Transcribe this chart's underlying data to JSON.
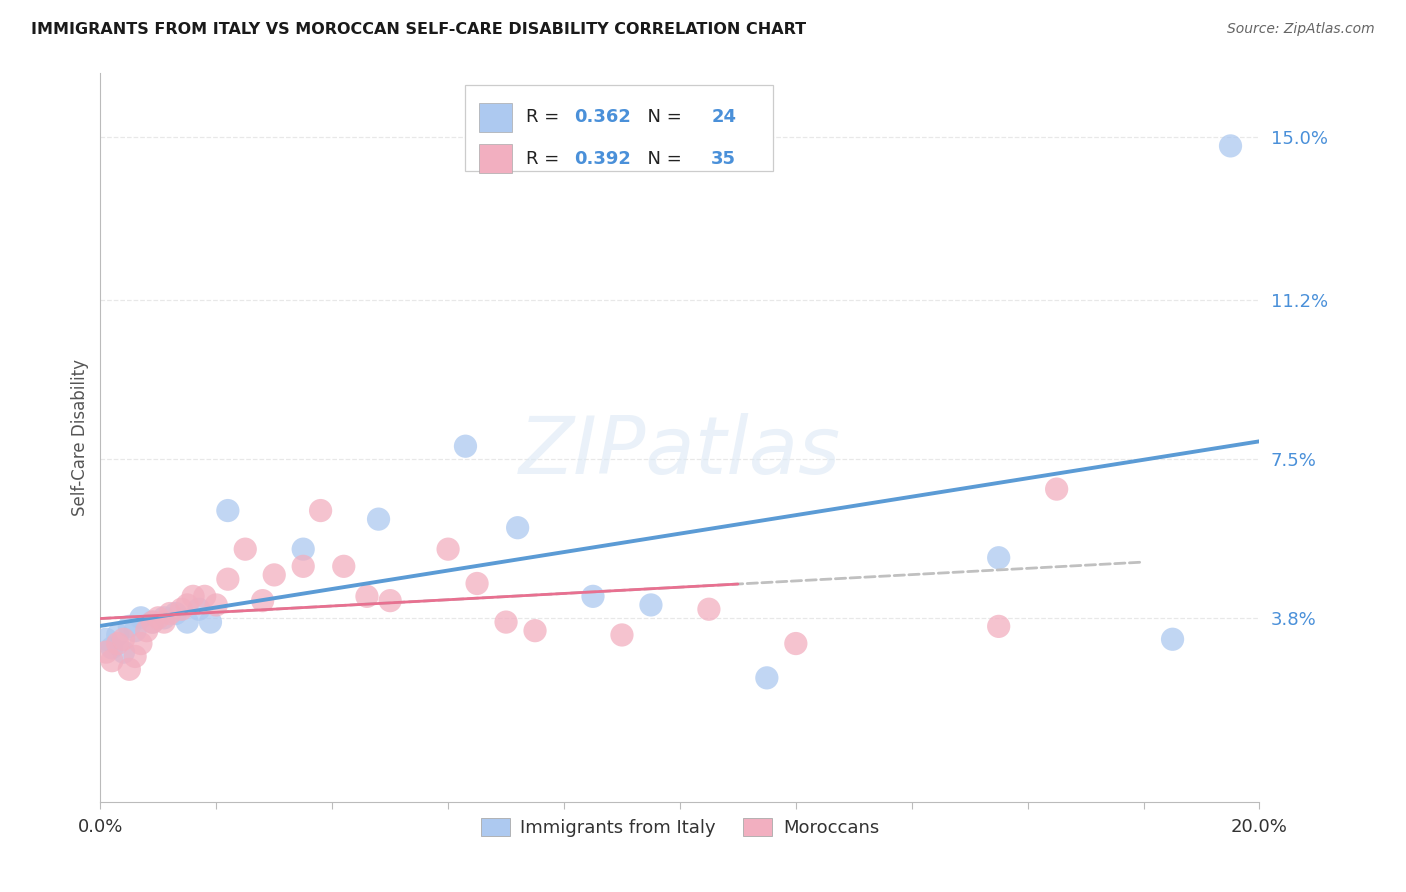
{
  "title": "IMMIGRANTS FROM ITALY VS MOROCCAN SELF-CARE DISABILITY CORRELATION CHART",
  "source": "Source: ZipAtlas.com",
  "ylabel": "Self-Care Disability",
  "xlim": [
    0.0,
    0.2
  ],
  "ylim": [
    -0.005,
    0.165
  ],
  "yticks": [
    0.038,
    0.075,
    0.112,
    0.15
  ],
  "ytick_labels": [
    "3.8%",
    "7.5%",
    "11.2%",
    "15.0%"
  ],
  "xtick_vals": [
    0.0,
    0.02,
    0.04,
    0.06,
    0.08,
    0.1,
    0.12,
    0.14,
    0.16,
    0.18,
    0.2
  ],
  "italy_color": "#adc9f0",
  "morocco_color": "#f2afc0",
  "italy_line_color": "#5b9bd5",
  "morocco_line_color": "#c0c0c0",
  "italy_R": "0.362",
  "italy_N": "24",
  "morocco_R": "0.392",
  "morocco_N": "35",
  "italy_x": [
    0.001,
    0.002,
    0.003,
    0.004,
    0.005,
    0.006,
    0.007,
    0.009,
    0.011,
    0.013,
    0.015,
    0.017,
    0.019,
    0.022,
    0.035,
    0.048,
    0.063,
    0.072,
    0.085,
    0.095,
    0.115,
    0.155,
    0.185,
    0.195
  ],
  "italy_y": [
    0.033,
    0.031,
    0.034,
    0.03,
    0.036,
    0.035,
    0.038,
    0.037,
    0.038,
    0.039,
    0.037,
    0.04,
    0.037,
    0.063,
    0.054,
    0.061,
    0.078,
    0.059,
    0.043,
    0.041,
    0.024,
    0.052,
    0.033,
    0.148
  ],
  "morocco_x": [
    0.001,
    0.002,
    0.003,
    0.004,
    0.005,
    0.006,
    0.007,
    0.008,
    0.009,
    0.01,
    0.011,
    0.012,
    0.014,
    0.015,
    0.016,
    0.018,
    0.02,
    0.022,
    0.025,
    0.028,
    0.03,
    0.035,
    0.038,
    0.042,
    0.046,
    0.05,
    0.06,
    0.065,
    0.07,
    0.075,
    0.09,
    0.105,
    0.12,
    0.155,
    0.165
  ],
  "morocco_y": [
    0.03,
    0.028,
    0.032,
    0.033,
    0.026,
    0.029,
    0.032,
    0.035,
    0.037,
    0.038,
    0.037,
    0.039,
    0.04,
    0.041,
    0.043,
    0.043,
    0.041,
    0.047,
    0.054,
    0.042,
    0.048,
    0.05,
    0.063,
    0.05,
    0.043,
    0.042,
    0.054,
    0.046,
    0.037,
    0.035,
    0.034,
    0.04,
    0.032,
    0.036,
    0.068
  ],
  "watermark": "ZIPatlas",
  "grid_color": "#e8e8e8",
  "background_color": "#ffffff"
}
